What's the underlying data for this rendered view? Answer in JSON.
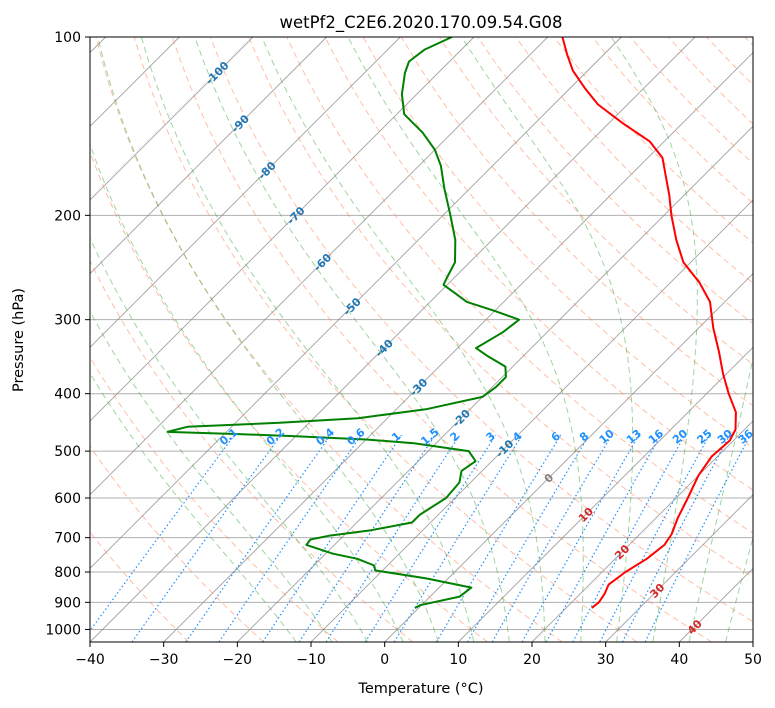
{
  "chart_data": {
    "type": "line",
    "title": "wetPf2_C2E6.2020.170.09.54.G08",
    "xlabel": "Temperature (°C)",
    "ylabel": "Pressure (hPa)",
    "xlim": [
      -40,
      50
    ],
    "ylim": [
      1050,
      100
    ],
    "y_scale": "log",
    "grid": true,
    "x_ticks": [
      -40,
      -30,
      -20,
      -10,
      0,
      10,
      20,
      30,
      40,
      50
    ],
    "x_tick_labels": [
      "−40",
      "−30",
      "−20",
      "−10",
      "0",
      "10",
      "20",
      "30",
      "40",
      "50"
    ],
    "y_ticks": [
      100,
      200,
      300,
      400,
      500,
      600,
      700,
      800,
      900,
      1000
    ],
    "y_tick_labels": [
      "100",
      "200",
      "300",
      "400",
      "500",
      "600",
      "700",
      "800",
      "900",
      "1000"
    ],
    "colors": {
      "temperature": "#ff0000",
      "dewpoint": "#008000",
      "isotherm": "#808080",
      "dry_adiabat": "#ff7f50",
      "moist_adiabat": "#2ca02c",
      "mixing_ratio": "#1e90ff",
      "isotherm_label": "#1f77b4",
      "positive_label": "#d62728",
      "zero_label": "#808080"
    },
    "series": [
      {
        "key": "temperature",
        "points": [
          [
            23.5,
            920
          ],
          [
            23.7,
            900
          ],
          [
            23.3,
            870
          ],
          [
            22.6,
            840
          ],
          [
            23.2,
            800
          ],
          [
            24.3,
            760
          ],
          [
            24.8,
            720
          ],
          [
            24.3,
            690
          ],
          [
            23.0,
            650
          ],
          [
            21.6,
            600
          ],
          [
            20.0,
            550
          ],
          [
            19.2,
            510
          ],
          [
            19.5,
            480
          ],
          [
            18.8,
            460
          ],
          [
            16.5,
            430
          ],
          [
            13.0,
            400
          ],
          [
            9.5,
            370
          ],
          [
            6.0,
            340
          ],
          [
            2.0,
            310
          ],
          [
            -2.0,
            280
          ],
          [
            -6.0,
            260
          ],
          [
            -11.0,
            240
          ],
          [
            -15.0,
            220
          ],
          [
            -19.0,
            200
          ],
          [
            -22.0,
            185
          ],
          [
            -25.5,
            170
          ],
          [
            -28.0,
            160
          ],
          [
            -32.0,
            150
          ],
          [
            -38.0,
            140
          ],
          [
            -44.0,
            130
          ],
          [
            -48.0,
            122
          ],
          [
            -52.0,
            114
          ],
          [
            -55.0,
            107
          ],
          [
            -58.0,
            100
          ]
        ]
      },
      {
        "key": "dewpoint",
        "points": [
          [
            -0.5,
            920
          ],
          [
            -0.2,
            910
          ],
          [
            4.0,
            880
          ],
          [
            4.4,
            850
          ],
          [
            -3.0,
            820
          ],
          [
            -11.0,
            795
          ],
          [
            -11.8,
            780
          ],
          [
            -15.0,
            760
          ],
          [
            -19.0,
            745
          ],
          [
            -23.8,
            720
          ],
          [
            -24.0,
            705
          ],
          [
            -22.0,
            695
          ],
          [
            -17.0,
            680
          ],
          [
            -12.5,
            660
          ],
          [
            -12.5,
            640
          ],
          [
            -11.2,
            600
          ],
          [
            -11.5,
            565
          ],
          [
            -12.8,
            540
          ],
          [
            -12.2,
            520
          ],
          [
            -14.5,
            500
          ],
          [
            -23.0,
            485
          ],
          [
            -30.0,
            478
          ],
          [
            -40.0,
            472
          ],
          [
            -48.0,
            468
          ],
          [
            -58.0,
            464
          ],
          [
            -56.0,
            455
          ],
          [
            -44.0,
            448
          ],
          [
            -34.0,
            440
          ],
          [
            -26.0,
            425
          ],
          [
            -20.0,
            405
          ],
          [
            -19.5,
            390
          ],
          [
            -19.5,
            375
          ],
          [
            -21.0,
            360
          ],
          [
            -25.0,
            345
          ],
          [
            -27.5,
            335
          ],
          [
            -26.0,
            315
          ],
          [
            -25.5,
            300
          ],
          [
            -30.0,
            290
          ],
          [
            -35.0,
            280
          ],
          [
            -38.0,
            270
          ],
          [
            -40.5,
            262
          ],
          [
            -41.0,
            255
          ],
          [
            -42.0,
            240
          ],
          [
            -45.0,
            220
          ],
          [
            -49.0,
            200
          ],
          [
            -53.5,
            180
          ],
          [
            -57.0,
            165
          ],
          [
            -60.0,
            155
          ],
          [
            -64.0,
            145
          ],
          [
            -69.0,
            135
          ],
          [
            -72.0,
            125
          ],
          [
            -74.5,
            115
          ],
          [
            -75.5,
            110
          ],
          [
            -75.0,
            105
          ],
          [
            -73.0,
            100
          ]
        ]
      }
    ],
    "isotherm_labels": [
      "-100",
      "-90",
      "-80",
      "-70",
      "-60",
      "-50",
      "-40",
      "-30",
      "-20",
      "-10",
      "0",
      "10",
      "20",
      "30",
      "40"
    ],
    "mixing_ratio_labels": [
      "0.1",
      "0.2",
      "0.4",
      "0.6",
      "1",
      "1.5",
      "2",
      "3",
      "4",
      "6",
      "8",
      "10",
      "13",
      "16",
      "20",
      "25",
      "30",
      "36"
    ]
  }
}
